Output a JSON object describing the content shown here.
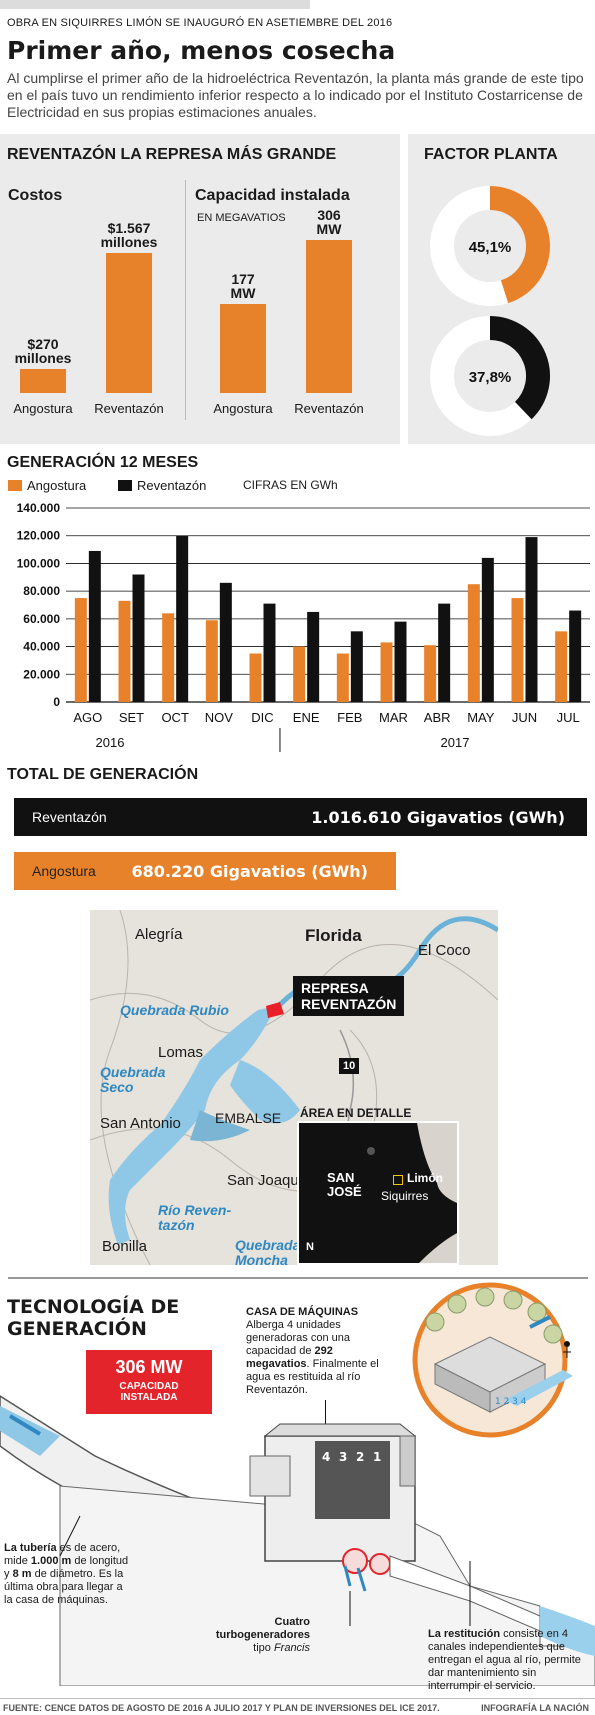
{
  "header": {
    "kicker": "OBRA EN SIQUIRRES LIMÓN SE INAUGURÓ EN ASETIEMBRE DEL 2016",
    "headline": "Primer año, menos cosecha",
    "intro": "Al cumplirse el primer año de la hidroeléctrica Reventazón, la planta más grande de este tipo en el país tuvo un rendimiento inferior respecto a lo indicado por el Instituto Costarricense de Electricidad en sus propias estimaciones anuales."
  },
  "represa": {
    "title": "REVENTAZÓN LA REPRESA MÁS GRANDE",
    "costos": {
      "title": "Costos",
      "bars": [
        {
          "label": "Angostura",
          "value": 270,
          "text": "$270\nmillones"
        },
        {
          "label": "Reventazón",
          "value": 1567,
          "text": "$1.567\nmillones"
        }
      ]
    },
    "capacidad": {
      "title": "Capacidad instalada",
      "unit": "EN MEGAVATIOS",
      "bars": [
        {
          "label": "Angostura",
          "value": 177,
          "text": "177\nMW"
        },
        {
          "label": "Reventazón",
          "value": 306,
          "text": "306\nMW"
        }
      ]
    }
  },
  "factor": {
    "title": "FACTOR PLANTA",
    "donuts": [
      {
        "value": 45.1,
        "text": "45,1%",
        "color": "#e8822a"
      },
      {
        "value": 37.8,
        "text": "37,8%",
        "color": "#111111"
      }
    ]
  },
  "generacion": {
    "title": "GENERACIÓN 12 MESES",
    "legend": [
      "Angostura",
      "Reventazón"
    ],
    "units": "CIFRAS EN GWh",
    "years": [
      "2016",
      "2017"
    ]
  },
  "chart_data": {
    "type": "bar",
    "categories": [
      "AGO",
      "SET",
      "OCT",
      "NOV",
      "DIC",
      "ENE",
      "FEB",
      "MAR",
      "ABR",
      "MAY",
      "JUN",
      "JUL"
    ],
    "series": [
      {
        "name": "Angostura",
        "color": "#e8822a",
        "values": [
          75000,
          73000,
          64000,
          59000,
          35000,
          40000,
          35000,
          43000,
          41000,
          85000,
          75000,
          51000
        ]
      },
      {
        "name": "Reventazón",
        "color": "#111111",
        "values": [
          109000,
          92000,
          120000,
          86000,
          71000,
          65000,
          51000,
          58000,
          71000,
          104000,
          119000,
          66000
        ]
      }
    ],
    "ylim": [
      0,
      140000
    ],
    "yticks": [
      "0",
      "20.000",
      "40.000",
      "60.000",
      "80.000",
      "100.000",
      "120.000",
      "140.000"
    ],
    "legend_position": "top-left",
    "grid": true
  },
  "total": {
    "title": "TOTAL DE GENERACIÓN",
    "rows": [
      {
        "name": "Reventazón",
        "value": "1.016.610 Gigavatios (GWh)"
      },
      {
        "name": "Angostura",
        "value": "680.220 Gigavatios (GWh)"
      }
    ]
  },
  "map": {
    "towns": [
      "Alegría",
      "Florida",
      "El Coco",
      "Lomas",
      "San Antonio",
      "San Joaquín",
      "Bonilla"
    ],
    "water": [
      "Quebrada Rubio",
      "Quebrada\nSeco",
      "Río Reven-\ntazón",
      "Quebrada\nMoncha"
    ],
    "embalse": "EMBALSE",
    "dam": "REPRESA\nREVENTAZÓN",
    "route": "10",
    "inset": {
      "title": "ÁREA EN DETALLE",
      "san_jose": "SAN\nJOSÉ",
      "limon": "Limón",
      "siquirres": "Siquirres",
      "north": "N"
    }
  },
  "tecnologia": {
    "title": "TECNOLOGÍA DE\nGENERACIÓN",
    "badge_value": "306 MW",
    "badge_label": "CAPACIDAD\nINSTALADA",
    "casa_title": "CASA DE MÁQUINAS",
    "casa_text_1": "Alberga 4 unidades generadoras con una capacidad de ",
    "casa_bold": "292 megavatios",
    "casa_text_2": ". Finalmente el agua es restituida al río Reventazón.",
    "tuberia_bold_1": "La tubería",
    "tuberia_text_1": " es de acero, mide ",
    "tuberia_bold_2": "1.000 m",
    "tuberia_text_2": " de longitud y ",
    "tuberia_bold_3": "8 m",
    "tuberia_text_3": " de diámetro. Es la última obra para llegar a la casa de máquinas.",
    "turbo_bold": "Cuatro\nturbogeneradores",
    "turbo_text": "tipo ",
    "turbo_italic": "Francis",
    "restitucion_bold": "La restitución",
    "restitucion_text": " consiste en 4 canales independientes que entregan el agua al río, permite dar mantenimiento sin interrumpir el servicio.",
    "unit_numbers": [
      "4",
      "3",
      "2",
      "1"
    ]
  },
  "footer": {
    "source": "FUENTE: CENCE DATOS DE AGOSTO DE 2016 A JULIO 2017 Y PLAN DE INVERSIONES DEL ICE 2017.",
    "credit": "INFOGRAFÍA LA NACIÓN"
  }
}
